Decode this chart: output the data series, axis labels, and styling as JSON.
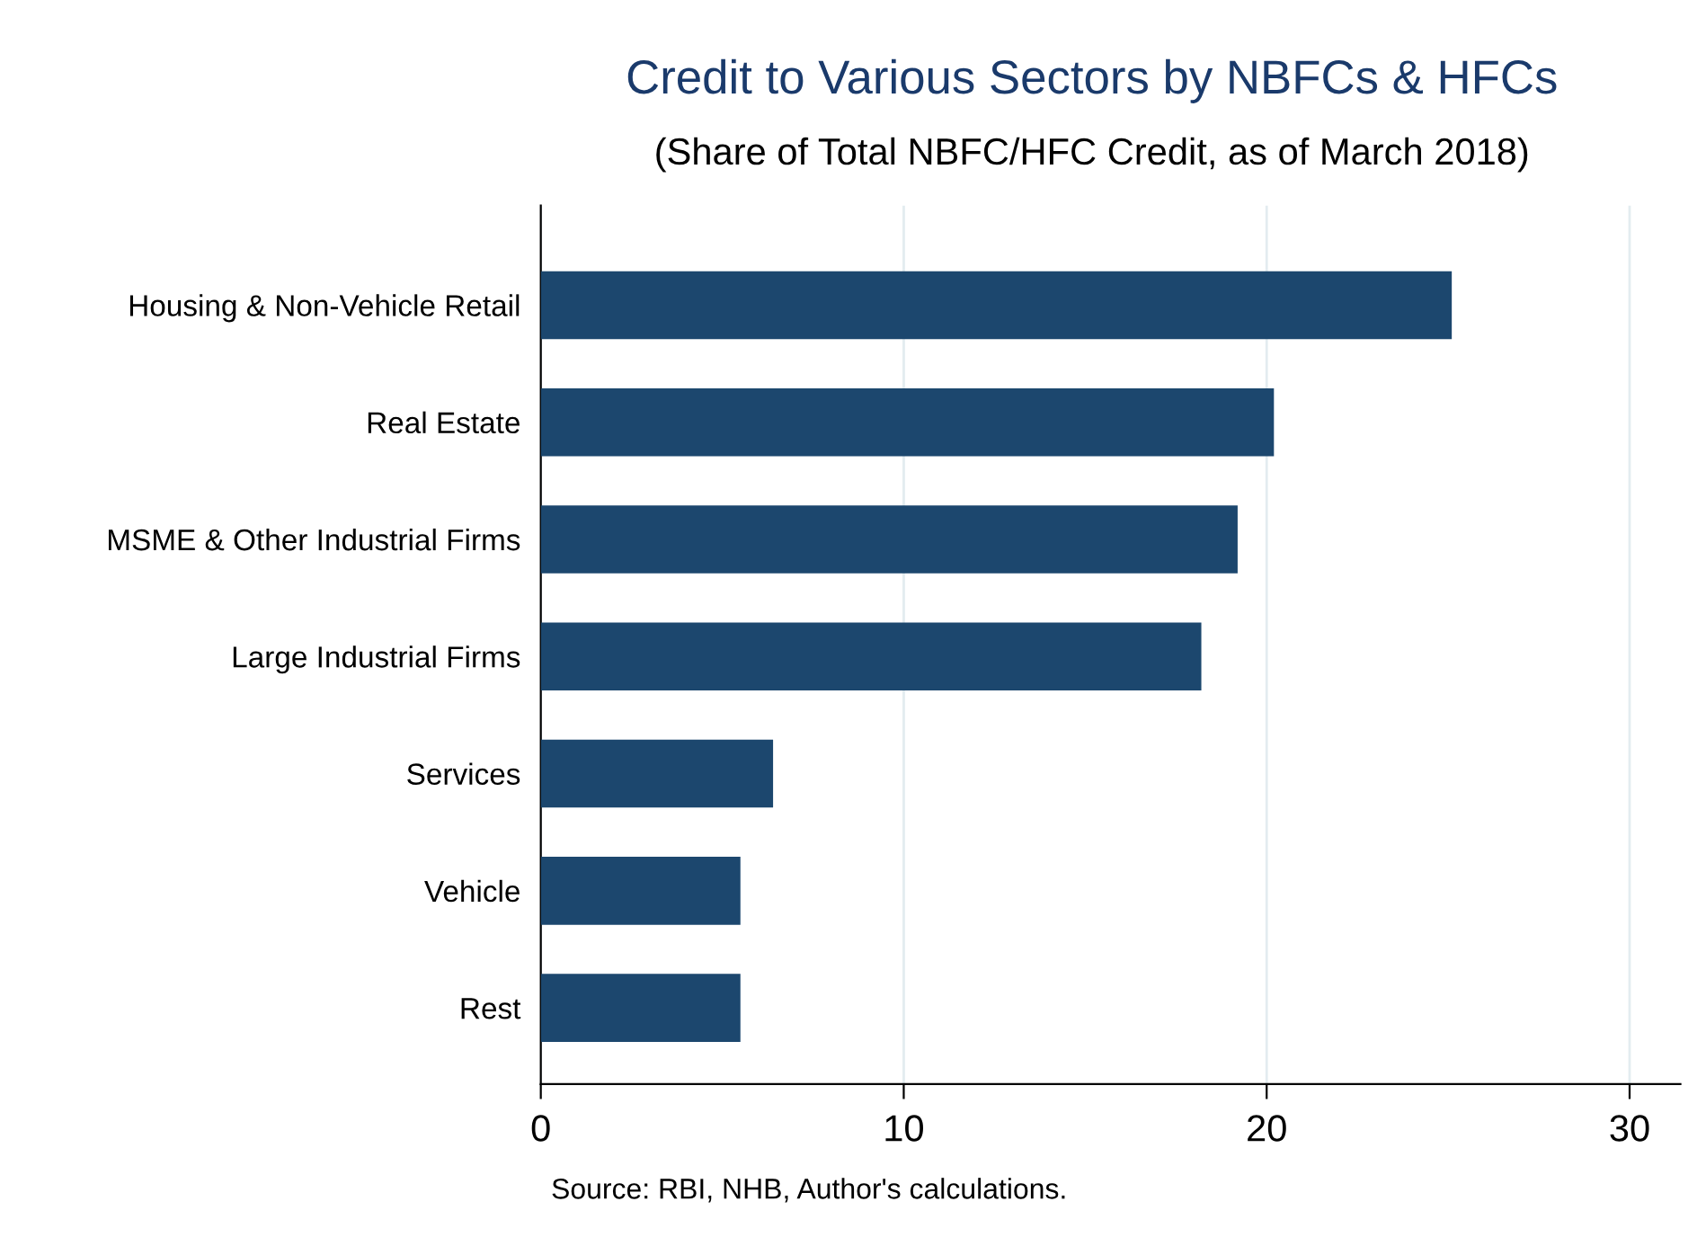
{
  "chart_data": {
    "type": "bar",
    "orientation": "horizontal",
    "title": "Credit to Various Sectors by NBFCs & HFCs",
    "subtitle": "(Share of Total NBFC/HFC Credit, as of March 2018)",
    "categories": [
      "Housing & Non-Vehicle Retail",
      "Real Estate",
      "MSME & Other Industrial Firms",
      "Large Industrial Firms",
      "Services",
      "Vehicle",
      "Rest"
    ],
    "values": [
      25.1,
      20.2,
      19.2,
      18.2,
      6.4,
      5.5,
      5.5
    ],
    "color": "#1c476e",
    "xlim": [
      0,
      31.4
    ],
    "xticks": [
      0,
      10,
      20,
      30
    ],
    "grid": "x",
    "annotations": [
      "Source: RBI, NHB, Author's calculations."
    ]
  }
}
